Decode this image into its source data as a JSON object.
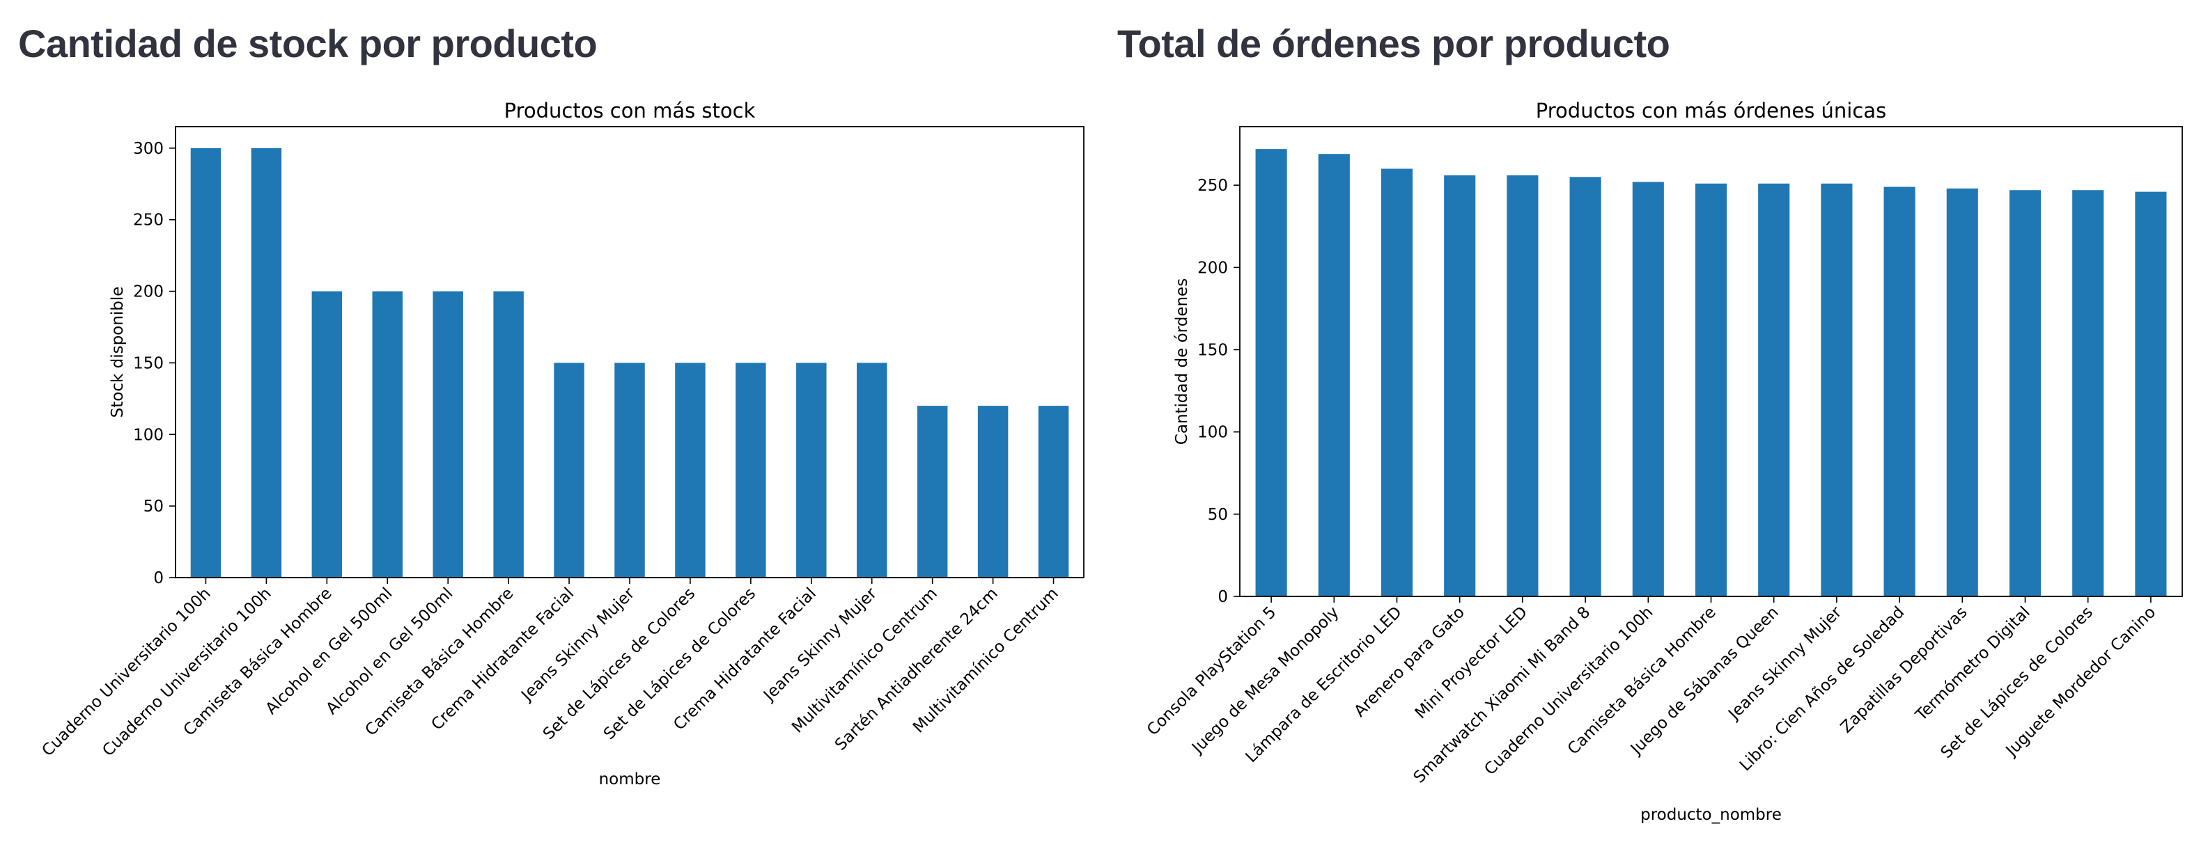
{
  "headings": {
    "left": "Cantidad de stock por producto",
    "right": "Total de órdenes por producto"
  },
  "colors": {
    "bar": "#1f77b4",
    "heading": "#31333f"
  },
  "chart_data": [
    {
      "type": "bar",
      "title": "Productos con más stock",
      "xlabel": "nombre",
      "ylabel": "Stock disponible",
      "ylim": [
        0,
        315
      ],
      "yticks": [
        0,
        50,
        100,
        150,
        200,
        250,
        300
      ],
      "grid": false,
      "categories": [
        "Cuaderno Universitario 100h",
        "Cuaderno Universitario 100h",
        "Camiseta Básica Hombre",
        "Alcohol en Gel 500ml",
        "Alcohol en Gel 500ml",
        "Camiseta Básica Hombre",
        "Crema Hidratante Facial",
        "Jeans Skinny Mujer",
        "Set de Lápices de Colores",
        "Set de Lápices de Colores",
        "Crema Hidratante Facial",
        "Jeans Skinny Mujer",
        "Multivitamínico Centrum",
        "Sartén Antiadherente 24cm",
        "Multivitamínico Centrum"
      ],
      "values": [
        300,
        300,
        200,
        200,
        200,
        200,
        150,
        150,
        150,
        150,
        150,
        150,
        120,
        120,
        120
      ]
    },
    {
      "type": "bar",
      "title": "Productos con más órdenes únicas",
      "xlabel": "producto_nombre",
      "ylabel": "Cantidad de órdenes",
      "ylim": [
        0,
        285.6
      ],
      "yticks": [
        0,
        50,
        100,
        150,
        200,
        250
      ],
      "grid": false,
      "categories": [
        "Consola PlayStation 5",
        "Juego de Mesa Monopoly",
        "Lámpara de Escritorio LED",
        "Arenero para Gato",
        "Mini Proyector LED",
        "Smartwatch Xiaomi Mi Band 8",
        "Cuaderno Universitario 100h",
        "Camiseta Básica Hombre",
        "Juego de Sábanas Queen",
        "Jeans Skinny Mujer",
        "Libro: Cien Años de Soledad",
        "Zapatillas Deportivas",
        "Termómetro Digital",
        "Set de Lápices de Colores",
        "Juguete Mordedor Canino"
      ],
      "values": [
        272,
        269,
        260,
        256,
        256,
        255,
        252,
        251,
        251,
        251,
        249,
        248,
        247,
        247,
        246
      ]
    }
  ]
}
